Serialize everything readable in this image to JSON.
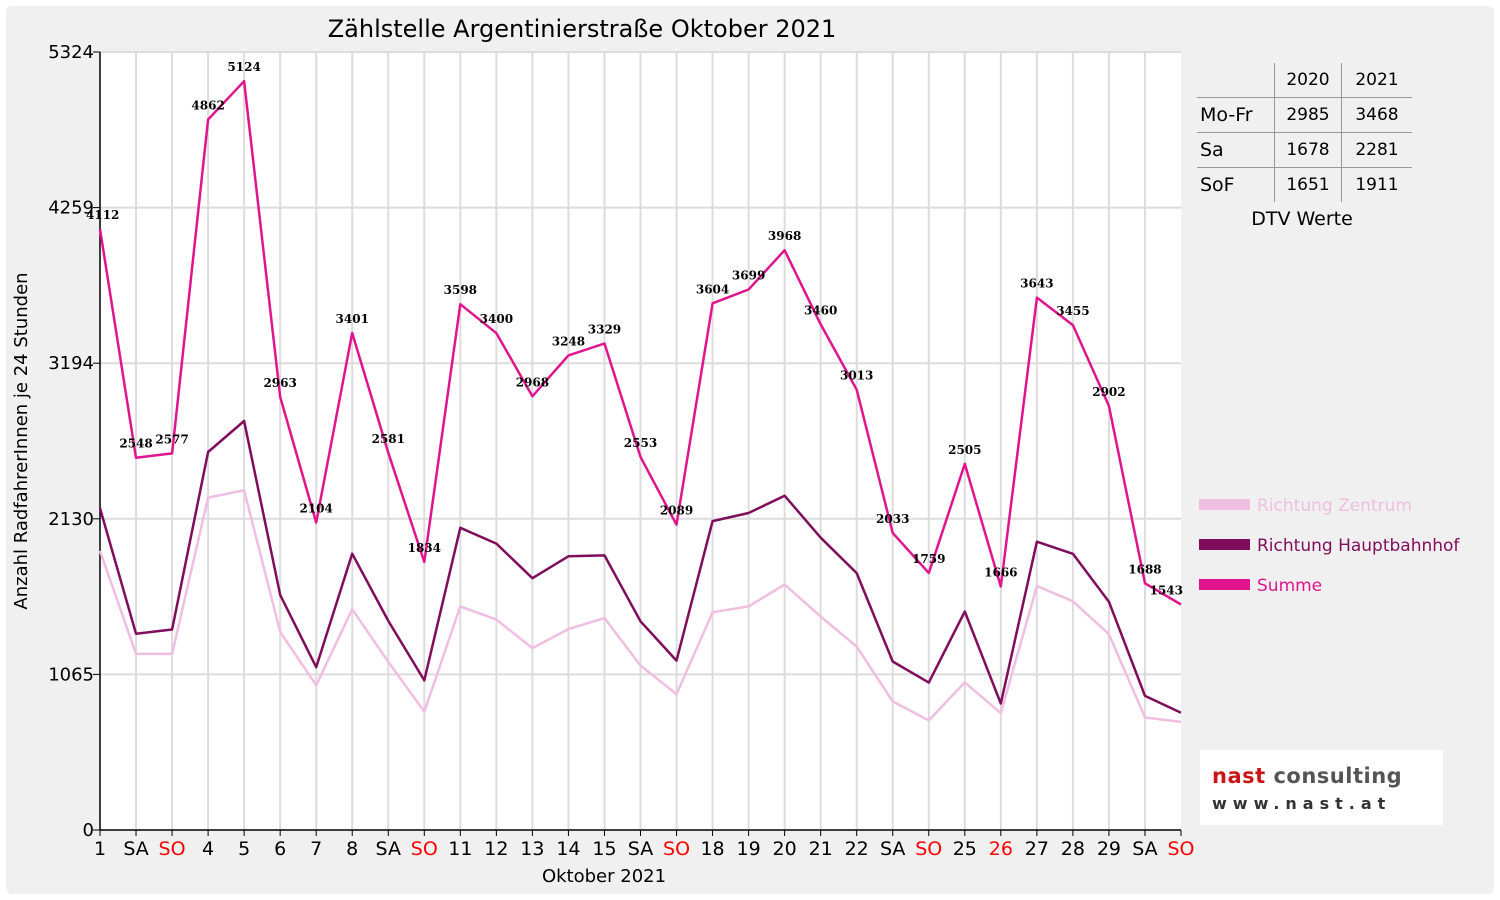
{
  "chart_data": {
    "type": "line",
    "title": "Zählstelle Argentinierstraße Oktober 2021",
    "xlabel": "Oktober 2021",
    "ylabel": "Anzahl RadfahrerInnen je 24 Stunden",
    "ylim": [
      0,
      5324
    ],
    "yticks": [
      "0",
      "1065",
      "2130",
      "3194",
      "4259",
      "5324"
    ],
    "grid": true,
    "legend_position": "right",
    "categories": [
      "1",
      "SA",
      "SO",
      "4",
      "5",
      "6",
      "7",
      "8",
      "SA",
      "SO",
      "11",
      "12",
      "13",
      "14",
      "15",
      "SA",
      "SO",
      "18",
      "19",
      "20",
      "21",
      "22",
      "SA",
      "SO",
      "25",
      "26",
      "27",
      "28",
      "29",
      "SA",
      "SO"
    ],
    "red_categories": [
      2,
      9,
      16,
      23,
      25,
      30
    ],
    "series": [
      {
        "name": "Richtung Zentrum",
        "color": "#efbee0",
        "values": [
          1910,
          1205,
          1205,
          2275,
          2325,
          1355,
          990,
          1510,
          1150,
          810,
          1530,
          1440,
          1245,
          1375,
          1450,
          1125,
          930,
          1490,
          1530,
          1680,
          1460,
          1255,
          880,
          750,
          1010,
          800,
          1670,
          1565,
          1340,
          770,
          740
        ]
      },
      {
        "name": "Richtung Hauptbahnhof",
        "color": "#7f0d5c",
        "values": [
          2202,
          1343,
          1372,
          2587,
          2799,
          1608,
          1114,
          1891,
          1431,
          1024,
          2068,
          1960,
          1723,
          1873,
          1879,
          1428,
          1159,
          2114,
          2169,
          2288,
          2000,
          1758,
          1153,
          1009,
          1495,
          866,
          1973,
          1890,
          1562,
          918,
          803
        ]
      },
      {
        "name": "Summe",
        "color": "#e0158e",
        "values": [
          4112,
          2548,
          2577,
          4862,
          5124,
          2963,
          2104,
          3401,
          2581,
          1834,
          3598,
          3400,
          2968,
          3248,
          3329,
          2553,
          2089,
          3604,
          3699,
          3968,
          3460,
          3013,
          2033,
          1759,
          2505,
          1666,
          3643,
          3455,
          2902,
          1688,
          1543
        ]
      }
    ],
    "data_labels": [
      "4112",
      "2548",
      "2577",
      "4862",
      "5124",
      "2963",
      "2104",
      "3401",
      "2581",
      "1834",
      "3598",
      "3400",
      "2968",
      "3248",
      "3329",
      "2553",
      "2089",
      "3604",
      "3699",
      "3968",
      "3460",
      "3013",
      "2033",
      "1759",
      "2505",
      "1666",
      "3643",
      "3455",
      "2902",
      "1688",
      "1543"
    ]
  },
  "dtv_table": {
    "headers": [
      "",
      "2020",
      "2021"
    ],
    "rows": [
      [
        "Mo-Fr",
        "2985",
        "3468"
      ],
      [
        "Sa",
        "1678",
        "2281"
      ],
      [
        "SoF",
        "1651",
        "1911"
      ]
    ],
    "caption": "DTV Werte"
  },
  "logo": {
    "word1": "nast",
    "word2": "consulting",
    "url": "www.nast.at"
  }
}
